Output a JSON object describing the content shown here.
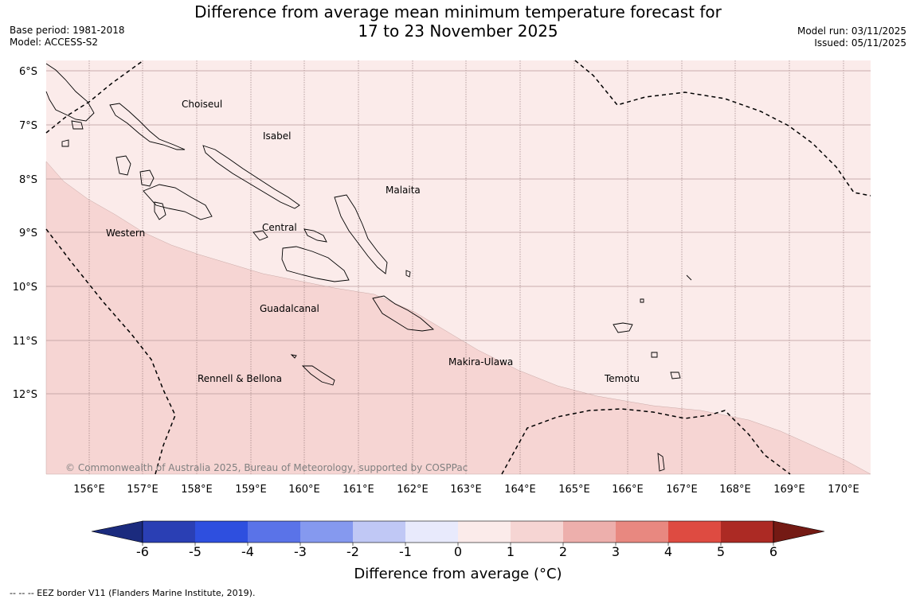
{
  "title": {
    "line1": "Difference from average mean minimum temperature forecast for",
    "line2": "17 to 23 November 2025"
  },
  "meta_left": {
    "base_period": "Base period: 1981-2018",
    "model": "Model: ACCESS-S2"
  },
  "meta_right": {
    "model_run": "Model run: 03/11/2025",
    "issued": "Issued: 05/11/2025"
  },
  "map": {
    "lon_labels": [
      "156°E",
      "157°E",
      "158°E",
      "159°E",
      "160°E",
      "161°E",
      "162°E",
      "163°E",
      "164°E",
      "165°E",
      "166°E",
      "167°E",
      "168°E",
      "169°E",
      "170°E"
    ],
    "lat_labels": [
      "6°S",
      "7°S",
      "8°S",
      "9°S",
      "10°S",
      "11°S",
      "12°S"
    ],
    "province_labels": [
      "Choiseul",
      "Isabel",
      "Malaita",
      "Western",
      "Central",
      "Guadalcanal",
      "Makira-Ulawa",
      "Temotu",
      "Rennell & Bellona"
    ],
    "copyright": "© Commonwealth of Australia 2025, Bureau of Meteorology, supported by COSPPac",
    "colors": {
      "band_0_1": "#fbebea",
      "band_1_2": "#f6d5d3",
      "coastline": "#000000",
      "grid": "#a08080"
    }
  },
  "legend": {
    "ticks": [
      "-6",
      "-5",
      "-4",
      "-3",
      "-2",
      "-1",
      "0",
      "1",
      "2",
      "3",
      "4",
      "5",
      "6"
    ],
    "label": "Difference from average ($^\\circ$C)",
    "label_display": "Difference from average (°C)",
    "colors": [
      "#1b2b7e",
      "#2a3fb4",
      "#2e4fdf",
      "#5a73e8",
      "#8599ef",
      "#c0c8f5",
      "#e8eafc",
      "#fbebea",
      "#f6d5d3",
      "#edafac",
      "#e88880",
      "#de4b41",
      "#ac2a24",
      "#741a14"
    ]
  },
  "footnote": "--  --  -- EEZ border V11 (Flanders Marine Institute, 2019)."
}
